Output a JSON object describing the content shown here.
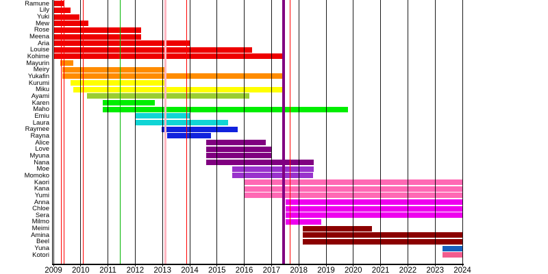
{
  "chart_data": {
    "type": "gantt",
    "title": "",
    "xlabel": "",
    "ylabel": "",
    "x_range": [
      2009,
      2024
    ],
    "grid": "vertical-yearly",
    "x_ticks": [
      "2009",
      "2010",
      "2011",
      "2012",
      "2013",
      "2014",
      "2015",
      "2016",
      "2017",
      "2018",
      "2019",
      "2020",
      "2021",
      "2022",
      "2023",
      "2024"
    ],
    "members": [
      {
        "name": "Ramune",
        "start": 2009.0,
        "end": 2009.4,
        "color": "#EE0000"
      },
      {
        "name": "Lily",
        "start": 2009.0,
        "end": 2009.64,
        "color": "#EE0000"
      },
      {
        "name": "Yuki",
        "start": 2009.0,
        "end": 2009.95,
        "color": "#EE0000"
      },
      {
        "name": "Mew",
        "start": 2009.0,
        "end": 2010.27,
        "color": "#EE0000"
      },
      {
        "name": "Rose",
        "start": 2009.0,
        "end": 2012.21,
        "color": "#EE0000"
      },
      {
        "name": "Meena",
        "start": 2009.0,
        "end": 2012.21,
        "color": "#EE0000"
      },
      {
        "name": "Aria",
        "start": 2009.0,
        "end": 2014.0,
        "color": "#EE0000"
      },
      {
        "name": "Louise",
        "start": 2009.0,
        "end": 2016.29,
        "color": "#EE0000"
      },
      {
        "name": "Kohime",
        "start": 2009.0,
        "end": 2017.47,
        "color": "#EE0000"
      },
      {
        "name": "Mayurin",
        "start": 2009.26,
        "end": 2009.72,
        "color": "#FF8C00"
      },
      {
        "name": "Meiry",
        "start": 2009.32,
        "end": 2013.13,
        "color": "#FF8C00"
      },
      {
        "name": "Yukafin",
        "start": 2009.32,
        "end": 2017.43,
        "color": "#FF8C00"
      },
      {
        "name": "Kurumi",
        "start": 2009.64,
        "end": 2013.15,
        "color": "#FFFF00"
      },
      {
        "name": "Miku",
        "start": 2009.74,
        "end": 2017.43,
        "color": "#FFFF00"
      },
      {
        "name": "Ayami",
        "start": 2010.24,
        "end": 2016.19,
        "color": "#9ACD32"
      },
      {
        "name": "Karen",
        "start": 2010.81,
        "end": 2012.71,
        "color": "#00EE00"
      },
      {
        "name": "Maho",
        "start": 2010.81,
        "end": 2019.81,
        "color": "#00EE00"
      },
      {
        "name": "Emiu",
        "start": 2012.02,
        "end": 2014.0,
        "color": "#10D5D5"
      },
      {
        "name": "Laura",
        "start": 2012.02,
        "end": 2015.41,
        "color": "#10D5D5"
      },
      {
        "name": "Raymee",
        "start": 2012.97,
        "end": 2015.77,
        "color": "#1122DD"
      },
      {
        "name": "Rayna",
        "start": 2013.18,
        "end": 2014.77,
        "color": "#1122DD"
      },
      {
        "name": "Alice",
        "start": 2014.6,
        "end": 2016.8,
        "color": "#800080"
      },
      {
        "name": "Love",
        "start": 2014.6,
        "end": 2016.99,
        "color": "#800080"
      },
      {
        "name": "Myuna",
        "start": 2014.6,
        "end": 2016.99,
        "color": "#800080"
      },
      {
        "name": "Nana",
        "start": 2014.6,
        "end": 2018.55,
        "color": "#800080"
      },
      {
        "name": "Moe",
        "start": 2015.57,
        "end": 2018.55,
        "color": "#9932CC"
      },
      {
        "name": "Momoko",
        "start": 2015.57,
        "end": 2018.53,
        "color": "#9932CC"
      },
      {
        "name": "Kaori",
        "start": 2016.02,
        "end": 2024.0,
        "color": "#FF69B4"
      },
      {
        "name": "Kana",
        "start": 2016.02,
        "end": 2024.0,
        "color": "#FF69B4"
      },
      {
        "name": "Yumi",
        "start": 2016.02,
        "end": 2024.0,
        "color": "#FF69B4"
      },
      {
        "name": "Anna",
        "start": 2017.53,
        "end": 2024.0,
        "color": "#EE00EE"
      },
      {
        "name": "Chloe",
        "start": 2017.53,
        "end": 2024.0,
        "color": "#EE00EE"
      },
      {
        "name": "Sera",
        "start": 2017.53,
        "end": 2024.0,
        "color": "#EE00EE"
      },
      {
        "name": "Milmo",
        "start": 2017.53,
        "end": 2018.83,
        "color": "#EE00EE"
      },
      {
        "name": "Meimi",
        "start": 2018.14,
        "end": 2020.68,
        "color": "#8B0000"
      },
      {
        "name": "Amina",
        "start": 2018.14,
        "end": 2024.0,
        "color": "#8B0000"
      },
      {
        "name": "Beel",
        "start": 2018.14,
        "end": 2024.0,
        "color": "#8B0000"
      },
      {
        "name": "Yuna",
        "start": 2023.26,
        "end": 2024.0,
        "color": "#1560BD"
      },
      {
        "name": "Kotori",
        "start": 2023.26,
        "end": 2024.0,
        "color": "#F25C8E"
      }
    ],
    "event_lines": [
      {
        "year": 2009.28,
        "color": "#FF0000",
        "width": 1
      },
      {
        "year": 2009.39,
        "color": "#FF0000",
        "width": 1
      },
      {
        "year": 2010.1,
        "color": "#FF0000",
        "width": 1
      },
      {
        "year": 2011.46,
        "color": "#00B400",
        "width": 1
      },
      {
        "year": 2013.11,
        "color": "#FFB6C1",
        "width": 3
      },
      {
        "year": 2013.88,
        "color": "#FF0000",
        "width": 1
      },
      {
        "year": 2017.45,
        "color": "#800080",
        "width": 4
      },
      {
        "year": 2017.67,
        "color": "#FF0000",
        "width": 1
      }
    ],
    "axis_color": "#000000",
    "background_color": "#ffffff"
  }
}
